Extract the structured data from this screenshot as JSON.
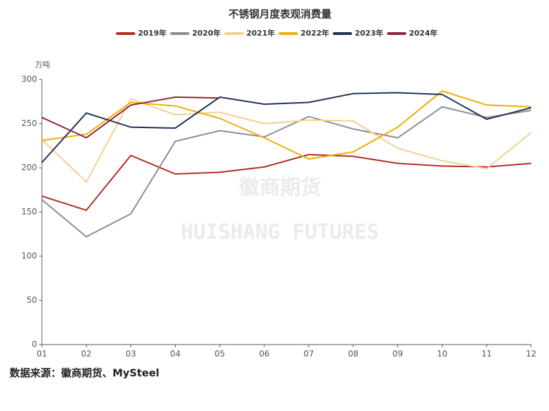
{
  "chart_data": {
    "type": "line",
    "title": "不锈钢月度表观消费量",
    "y_unit": "万吨",
    "watermark": [
      "徽商期货",
      "HUISHANG FUTURES"
    ],
    "source": "数据来源：徽商期货、MySteel",
    "categories": [
      "01",
      "02",
      "03",
      "04",
      "05",
      "06",
      "07",
      "08",
      "09",
      "10",
      "11",
      "12"
    ],
    "ylim": [
      0,
      300
    ],
    "yticks": [
      0,
      50,
      100,
      150,
      200,
      250,
      300
    ],
    "legend": "top",
    "series": [
      {
        "name": "2019年",
        "color": "#b22a22",
        "values": [
          168,
          152,
          214,
          193,
          195,
          201,
          215,
          213,
          205,
          202,
          201,
          205
        ]
      },
      {
        "name": "2020年",
        "color": "#8c8c94",
        "values": [
          164,
          122,
          148,
          230,
          242,
          235,
          258,
          244,
          234,
          269,
          257,
          265
        ]
      },
      {
        "name": "2021年",
        "color": "#f5cf90",
        "values": [
          232,
          184,
          278,
          260,
          263,
          250,
          254,
          253,
          222,
          208,
          199,
          240
        ]
      },
      {
        "name": "2022年",
        "color": "#f0ad00",
        "values": [
          231,
          238,
          274,
          270,
          256,
          234,
          210,
          218,
          246,
          287,
          271,
          269
        ]
      },
      {
        "name": "2023年",
        "color": "#1b2f57",
        "values": [
          206,
          262,
          246,
          245,
          280,
          272,
          274,
          284,
          285,
          283,
          255,
          268
        ]
      },
      {
        "name": "2024年",
        "color": "#8b2535",
        "values": [
          257,
          234,
          271,
          280,
          279,
          null,
          null,
          null,
          null,
          null,
          null,
          null
        ]
      }
    ]
  }
}
